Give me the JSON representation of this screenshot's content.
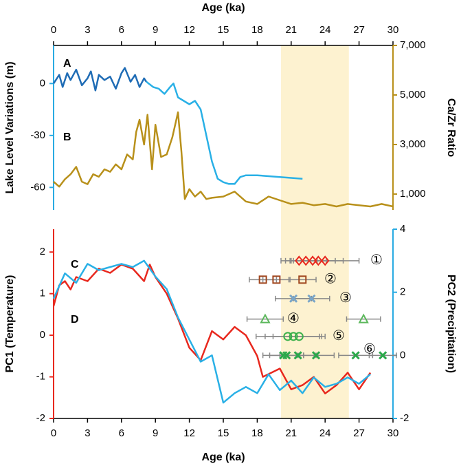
{
  "chart_data": [
    {
      "type": "line",
      "xlabel": "Age (ka)",
      "xlim": [
        0,
        30
      ],
      "xticks": [
        0,
        3,
        6,
        9,
        12,
        15,
        18,
        21,
        24,
        27,
        30
      ],
      "ylabel": "Lake Level Variations (m)",
      "ylim": [
        -73,
        22
      ],
      "yticks": [
        -60,
        -30,
        0
      ],
      "ycolor": "#29abe2",
      "y2label": "Ca/Zr Ratio",
      "y2lim": [
        360,
        7000
      ],
      "y2color": "#b8901a",
      "y2ticks": [
        {
          "value": 1000,
          "label": "1,000"
        },
        {
          "value": 3000,
          "label": "3,000"
        },
        {
          "value": 5000,
          "label": "5,000"
        },
        {
          "value": 7000,
          "label": "7,000"
        }
      ],
      "shade_x": [
        20.1,
        26.1
      ],
      "shade_color": "#fdf2d0",
      "series": [
        {
          "name": "A",
          "color": "#1f6cb5",
          "x": [
            0,
            0.5,
            0.8,
            1.2,
            1.5,
            2,
            2.5,
            3,
            3.3,
            3.7,
            4,
            4.5,
            5,
            5.5,
            6,
            6.3,
            6.8,
            7.2,
            7.6,
            8,
            8.2
          ],
          "values": [
            0,
            5,
            -2,
            6,
            2,
            8,
            -1,
            3,
            7,
            -4,
            5,
            2,
            4,
            -3,
            6,
            9,
            1,
            5,
            -2,
            3,
            1
          ]
        },
        {
          "color": "#29b0e6",
          "x": [
            8.2,
            8.8,
            9.3,
            9.8,
            10.3,
            10.6,
            11,
            11.5,
            12,
            12.5,
            13,
            13.5,
            14,
            14.5,
            15,
            15.5,
            16,
            16.5,
            17,
            18,
            20,
            22
          ],
          "values": [
            1,
            -2,
            -3,
            -6,
            -2,
            0,
            -8,
            -10,
            -12,
            -10,
            -15,
            -30,
            -45,
            -55,
            -57,
            -58,
            -58,
            -54,
            -53,
            -53,
            -54,
            -55
          ]
        },
        {
          "name": "B",
          "color": "#b8901a",
          "axis": "y2",
          "x": [
            0,
            0.5,
            1,
            1.5,
            2,
            2.5,
            3,
            3.5,
            4,
            4.5,
            5,
            5.5,
            6,
            6.5,
            7,
            7.3,
            7.6,
            8,
            8.3,
            8.7,
            9,
            9.5,
            10,
            10.5,
            11,
            11.3,
            11.6,
            12,
            12.5,
            13,
            13.5,
            14,
            15,
            16,
            17,
            18,
            19,
            20,
            21,
            22,
            23,
            24,
            25,
            26,
            27,
            28,
            29,
            30
          ],
          "values": [
            1500,
            1300,
            1600,
            1800,
            2100,
            1500,
            1400,
            1800,
            1700,
            2000,
            1900,
            2200,
            2000,
            2600,
            2400,
            3500,
            4000,
            3000,
            4200,
            2000,
            3800,
            2500,
            2600,
            3300,
            4300,
            2700,
            800,
            1200,
            900,
            1100,
            800,
            850,
            900,
            1100,
            700,
            600,
            900,
            750,
            600,
            650,
            550,
            600,
            500,
            600,
            550,
            500,
            600,
            500
          ]
        }
      ]
    },
    {
      "type": "line",
      "xlabel": "Age (ka)",
      "xlim": [
        0,
        30
      ],
      "xticks": [
        0,
        3,
        6,
        9,
        12,
        15,
        18,
        21,
        24,
        27,
        30
      ],
      "ylabel": "PC1 (Temperature)",
      "ylim": [
        -2,
        2.55
      ],
      "yticks": [
        -2,
        -1,
        0,
        1,
        2
      ],
      "ycolor": "#e8281e",
      "y2label": "PC2 (Precipitation)",
      "y2lim": [
        -2,
        4
      ],
      "y2ticks": [
        -2,
        0,
        2,
        4
      ],
      "y2color": "#29abe2",
      "series": [
        {
          "name": "C",
          "color": "#e8281e",
          "x": [
            0,
            0.5,
            1,
            1.5,
            2,
            3,
            4,
            5,
            6,
            7,
            8,
            8.5,
            9,
            10,
            11,
            12,
            13,
            14,
            15,
            16,
            17,
            18,
            18.5,
            20,
            21,
            22,
            23,
            24,
            25,
            26,
            27,
            28
          ],
          "values": [
            0.7,
            1.2,
            1.3,
            1.1,
            1.4,
            1.3,
            1.6,
            1.5,
            1.7,
            1.6,
            1.3,
            1.7,
            1.4,
            1.0,
            0.4,
            -0.3,
            -0.6,
            0.1,
            -0.1,
            0.2,
            0,
            -0.5,
            -1,
            -0.8,
            -1.3,
            -1.2,
            -1.0,
            -1.4,
            -1.2,
            -0.9,
            -1.3,
            -0.9
          ]
        },
        {
          "name": "D",
          "color": "#29b0e6",
          "axis": "y2",
          "x": [
            0,
            1,
            2,
            3,
            4,
            5,
            6,
            7,
            8,
            9,
            10,
            11,
            12,
            13,
            14,
            15,
            16,
            17,
            18,
            19,
            20,
            21,
            22,
            23,
            24,
            25,
            26,
            27,
            28
          ],
          "values": [
            1.8,
            2.6,
            2.3,
            2.9,
            2.7,
            2.8,
            2.9,
            2.8,
            3.0,
            2.5,
            2.1,
            1.2,
            0.5,
            -0.2,
            0.0,
            -1.5,
            -1.2,
            -1.0,
            -1.2,
            -0.6,
            -1.1,
            -0.8,
            -1.2,
            -0.7,
            -1.0,
            -0.9,
            -0.7,
            -0.9,
            -0.6
          ]
        }
      ],
      "dating_sets": [
        {
          "name": "①",
          "color": "#e8281e",
          "marker": "diamond",
          "x": [
            21.7,
            22.3,
            22.9,
            23.4,
            24.0
          ],
          "y": [
            3,
            3,
            3,
            3,
            3
          ],
          "xerr": [
            1.6,
            1.8,
            2.0,
            2.2,
            3.0
          ]
        },
        {
          "name": "②",
          "color": "#a0461e",
          "marker": "square",
          "x": [
            18.5,
            19.7,
            22.0
          ],
          "y": [
            2.4,
            2.4,
            2.4
          ],
          "xerr": [
            1.2,
            1.2,
            1.2
          ]
        },
        {
          "name": "③",
          "color": "#7aa6c8",
          "marker": "x",
          "x": [
            21.2,
            22.8
          ],
          "y": [
            1.8,
            1.8
          ],
          "xerr": [
            1.6,
            1.6
          ]
        },
        {
          "name": "④",
          "color": "#5cb85c",
          "marker": "triangle",
          "x": [
            18.7,
            27.4
          ],
          "y": [
            1.15,
            1.15
          ],
          "xerr": [
            1.6,
            1.5
          ]
        },
        {
          "name": "⑤",
          "color": "#3ab04a",
          "marker": "circle",
          "x": [
            20.7,
            21.2,
            21.7
          ],
          "y": [
            0.6,
            0.6,
            0.6
          ],
          "xerr": [
            2.8,
            2.5,
            2.3
          ]
        },
        {
          "name": "⑥",
          "color": "#2aa84a",
          "marker": "x",
          "x": [
            20.3,
            20.6,
            21.6,
            23.2,
            26.7,
            29.1
          ],
          "y": [
            0,
            0,
            0,
            0,
            0,
            0
          ],
          "xerr": [
            1.8,
            1.5,
            1.6,
            1.6,
            1.5,
            1.2
          ]
        }
      ]
    }
  ]
}
